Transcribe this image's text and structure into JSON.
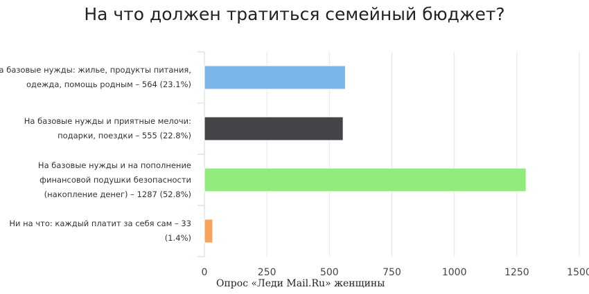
{
  "chart_data": {
    "type": "bar",
    "orientation": "horizontal",
    "title": "На что должен тратиться семейный бюджет?",
    "categories": [
      [
        "На базовые нужды: жилье, продукты питания,",
        "одежда, помощь родным – 564 (23.1%)"
      ],
      [
        "На базовые нужды и приятные мелочи:",
        "подарки, поездки – 555 (22.8%)"
      ],
      [
        "На базовые нужды и на пополнение",
        "финансовой подушки безопасности",
        "(накопление денег) – 1287 (52.8%)"
      ],
      [
        "Ни на что: каждый платит за себя сам – 33",
        "(1.4%)"
      ]
    ],
    "values": [
      564,
      555,
      1287,
      33
    ],
    "percents": [
      23.1,
      22.8,
      52.8,
      1.4
    ],
    "colors": [
      "#7cb5ec",
      "#434348",
      "#90ed7d",
      "#f7a35c"
    ],
    "xlim": [
      0,
      1500
    ],
    "x_ticks": [
      "0",
      "250",
      "500",
      "750",
      "1000",
      "1250",
      "1500"
    ],
    "grid": true,
    "xlabel": "",
    "ylabel": ""
  },
  "source_note": "Опрос «Леди Mail.Ru» женщины"
}
